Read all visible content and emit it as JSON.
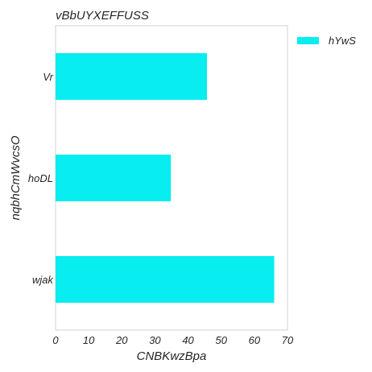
{
  "chart_data": {
    "type": "bar",
    "orientation": "horizontal",
    "title": "vBbUYXEFFUSS",
    "xlabel": "CNBKwzBpa",
    "ylabel": "nqbhCmWvcsO",
    "categories": [
      "Vr",
      "hoDL",
      "wjak"
    ],
    "series": [
      {
        "name": "hYwS",
        "values": [
          45.7,
          34.8,
          66.0
        ],
        "color": "#08edf0"
      }
    ],
    "xlim": [
      0,
      70
    ],
    "xticks": [
      "0",
      "10",
      "20",
      "30",
      "40",
      "50",
      "60",
      "70"
    ],
    "grid": false,
    "legend_position": "outside-top-right"
  }
}
